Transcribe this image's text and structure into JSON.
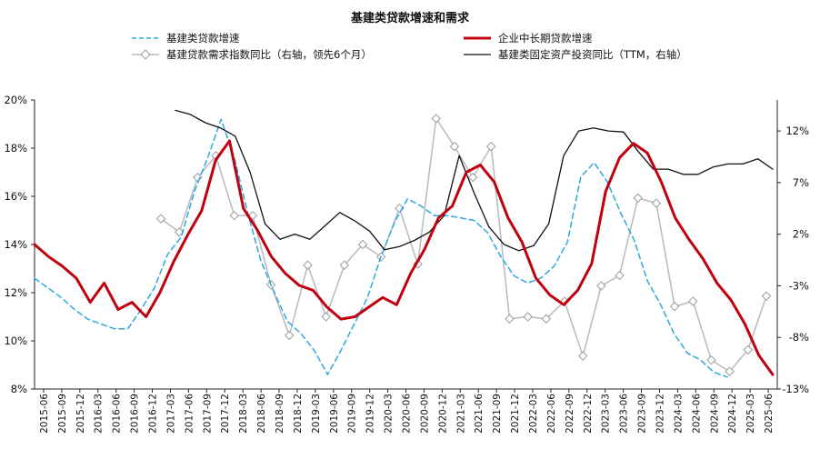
{
  "chart_data": {
    "type": "line",
    "title": "基建类贷款增速和需求",
    "left_axis": {
      "ticks": [
        "8%",
        "10%",
        "12%",
        "14%",
        "16%",
        "18%",
        "20%"
      ],
      "range": [
        8,
        20
      ]
    },
    "right_axis": {
      "ticks": [
        "-13%",
        "-8%",
        "-3%",
        "2%",
        "7%",
        "12%"
      ],
      "range": [
        -13,
        15
      ]
    },
    "x_labels": [
      "2015-06",
      "2015-09",
      "2015-12",
      "2016-03",
      "2016-06",
      "2016-09",
      "2016-12",
      "2017-03",
      "2017-06",
      "2017-09",
      "2017-12",
      "2018-03",
      "2018-06",
      "2018-09",
      "2018-12",
      "2019-03",
      "2019-06",
      "2019-09",
      "2019-12",
      "2020-03",
      "2020-06",
      "2020-09",
      "2020-12",
      "2021-03",
      "2021-06",
      "2021-09",
      "2021-12",
      "2022-03",
      "2022-06",
      "2022-09",
      "2022-12",
      "2023-03",
      "2023-06",
      "2023-09",
      "2023-12",
      "2024-03",
      "2024-06",
      "2024-09",
      "2024-12",
      "2025-03",
      "2025-06"
    ],
    "legend": [
      {
        "label": "基建类贷款增速",
        "style": "dashed",
        "color": "#2ea8e0",
        "axis": "left"
      },
      {
        "label": "企业中长期贷款增速",
        "style": "solid-thick",
        "color": "#c0000f",
        "axis": "left"
      },
      {
        "label": "基建贷款需求指数同比（右轴，领先6个月）",
        "style": "marker-diamond",
        "color": "#b8b8c0",
        "axis": "right"
      },
      {
        "label": "基建类固定资产投资同比（TTM，右轴）",
        "style": "solid-thin",
        "color": "#111111",
        "axis": "right"
      }
    ],
    "series": [
      {
        "name": "基建类贷款增速",
        "axis": "left",
        "points": [
          [
            0,
            12.6
          ],
          [
            2,
            11.8
          ],
          [
            3,
            11.3
          ],
          [
            4,
            10.9
          ],
          [
            5,
            10.7
          ],
          [
            6,
            10.5
          ],
          [
            7,
            10.5
          ],
          [
            8,
            11.3
          ],
          [
            9,
            12.2
          ],
          [
            10,
            13.6
          ],
          [
            11,
            14.3
          ],
          [
            12,
            16.2
          ],
          [
            13,
            17.6
          ],
          [
            14,
            19.2
          ],
          [
            15,
            17.6
          ],
          [
            16,
            15.3
          ],
          [
            17,
            13.3
          ],
          [
            18,
            12.0
          ],
          [
            19,
            10.8
          ],
          [
            20,
            10.3
          ],
          [
            21,
            9.6
          ],
          [
            22,
            8.6
          ],
          [
            23,
            9.6
          ],
          [
            24,
            10.7
          ],
          [
            25,
            11.8
          ],
          [
            26,
            13.5
          ],
          [
            27,
            14.9
          ],
          [
            28,
            15.9
          ],
          [
            29,
            15.6
          ],
          [
            30,
            15.2
          ],
          [
            31,
            15.2
          ],
          [
            32,
            15.1
          ],
          [
            33,
            15.0
          ],
          [
            34,
            14.5
          ],
          [
            35,
            13.5
          ],
          [
            36,
            12.7
          ],
          [
            37,
            12.4
          ],
          [
            38,
            12.6
          ],
          [
            39,
            13.1
          ],
          [
            40,
            14.1
          ],
          [
            41,
            16.8
          ],
          [
            42,
            17.4
          ],
          [
            43,
            16.6
          ],
          [
            44,
            15.3
          ],
          [
            45,
            14.2
          ],
          [
            46,
            12.5
          ],
          [
            47,
            11.5
          ],
          [
            48,
            10.3
          ],
          [
            49,
            9.5
          ],
          [
            50,
            9.2
          ],
          [
            51,
            8.7
          ],
          [
            52,
            8.5
          ]
        ]
      },
      {
        "name": "企业中长期贷款增速",
        "axis": "left",
        "points": [
          [
            0,
            14.0
          ],
          [
            1,
            13.5
          ],
          [
            2,
            13.1
          ],
          [
            3,
            12.6
          ],
          [
            4,
            11.6
          ],
          [
            5,
            12.4
          ],
          [
            6,
            11.3
          ],
          [
            7,
            11.6
          ],
          [
            8,
            11.0
          ],
          [
            9,
            12.0
          ],
          [
            10,
            13.3
          ],
          [
            11,
            14.4
          ],
          [
            12,
            15.4
          ],
          [
            13,
            17.5
          ],
          [
            14,
            18.3
          ],
          [
            15,
            15.5
          ],
          [
            16,
            14.6
          ],
          [
            17,
            13.5
          ],
          [
            18,
            12.8
          ],
          [
            19,
            12.3
          ],
          [
            20,
            12.1
          ],
          [
            21,
            11.4
          ],
          [
            22,
            10.9
          ],
          [
            23,
            11.0
          ],
          [
            24,
            11.4
          ],
          [
            25,
            11.8
          ],
          [
            26,
            11.5
          ],
          [
            27,
            12.8
          ],
          [
            28,
            13.8
          ],
          [
            29,
            15.1
          ],
          [
            30,
            15.6
          ],
          [
            31,
            17.0
          ],
          [
            32,
            17.3
          ],
          [
            33,
            16.6
          ],
          [
            34,
            15.1
          ],
          [
            35,
            14.1
          ],
          [
            36,
            12.6
          ],
          [
            37,
            11.9
          ],
          [
            38,
            11.5
          ],
          [
            39,
            12.1
          ],
          [
            40,
            13.2
          ],
          [
            41,
            16.2
          ],
          [
            42,
            17.6
          ],
          [
            43,
            18.2
          ],
          [
            44,
            17.8
          ],
          [
            45,
            16.6
          ],
          [
            46,
            15.1
          ],
          [
            47,
            14.2
          ],
          [
            48,
            13.4
          ],
          [
            49,
            12.4
          ],
          [
            50,
            11.7
          ],
          [
            51,
            10.7
          ],
          [
            52,
            9.4
          ],
          [
            53,
            8.6
          ]
        ]
      },
      {
        "name": "基建贷款需求指数同比（右轴，领先6个月）",
        "axis": "right",
        "points": [
          [
            0,
            3.5
          ],
          [
            1,
            2.2
          ],
          [
            2,
            7.5
          ],
          [
            3,
            9.6
          ],
          [
            4,
            3.8
          ],
          [
            5,
            3.8
          ],
          [
            6,
            -2.9
          ],
          [
            7,
            -7.8
          ],
          [
            8,
            -1.0
          ],
          [
            9,
            -6.0
          ],
          [
            10,
            -1.0
          ],
          [
            11,
            1.0
          ],
          [
            12,
            -0.2
          ],
          [
            13,
            4.5
          ],
          [
            14,
            -0.9
          ],
          [
            15,
            13.2
          ],
          [
            16,
            10.5
          ],
          [
            17,
            7.5
          ],
          [
            18,
            10.5
          ],
          [
            19,
            -6.2
          ],
          [
            20,
            -6.0
          ],
          [
            21,
            -6.2
          ],
          [
            22,
            -4.5
          ],
          [
            23,
            -9.8
          ],
          [
            24,
            -3.0
          ],
          [
            25,
            -2.0
          ],
          [
            26,
            5.5
          ],
          [
            27,
            5.0
          ],
          [
            28,
            -5.0
          ],
          [
            29,
            -4.5
          ],
          [
            30,
            -10.2
          ],
          [
            31,
            -11.3
          ],
          [
            32,
            -9.2
          ],
          [
            33,
            -4.0
          ]
        ]
      },
      {
        "name": "基建类固定资产投资同比（TTM，右轴）",
        "axis": "right",
        "points": [
          [
            0,
            14.0
          ],
          [
            1,
            13.6
          ],
          [
            2,
            12.8
          ],
          [
            3,
            12.3
          ],
          [
            4,
            11.5
          ],
          [
            5,
            8.0
          ],
          [
            6,
            3.0
          ],
          [
            7,
            1.5
          ],
          [
            8,
            2.0
          ],
          [
            9,
            1.5
          ],
          [
            10,
            2.8
          ],
          [
            11,
            4.1
          ],
          [
            12,
            3.3
          ],
          [
            13,
            2.3
          ],
          [
            14,
            0.5
          ],
          [
            15,
            0.8
          ],
          [
            16,
            1.4
          ],
          [
            17,
            2.2
          ],
          [
            18,
            3.8
          ],
          [
            19,
            9.6
          ],
          [
            20,
            6.0
          ],
          [
            21,
            2.7
          ],
          [
            22,
            1.0
          ],
          [
            23,
            0.4
          ],
          [
            24,
            0.9
          ],
          [
            25,
            3.0
          ],
          [
            26,
            9.6
          ],
          [
            27,
            12.0
          ],
          [
            28,
            12.3
          ],
          [
            29,
            12.0
          ],
          [
            30,
            11.9
          ],
          [
            31,
            10.0
          ],
          [
            32,
            8.3
          ],
          [
            33,
            8.3
          ],
          [
            34,
            7.8
          ],
          [
            35,
            7.8
          ],
          [
            36,
            8.5
          ],
          [
            37,
            8.8
          ],
          [
            38,
            8.8
          ],
          [
            39,
            9.3
          ],
          [
            40,
            8.3
          ]
        ]
      }
    ]
  }
}
